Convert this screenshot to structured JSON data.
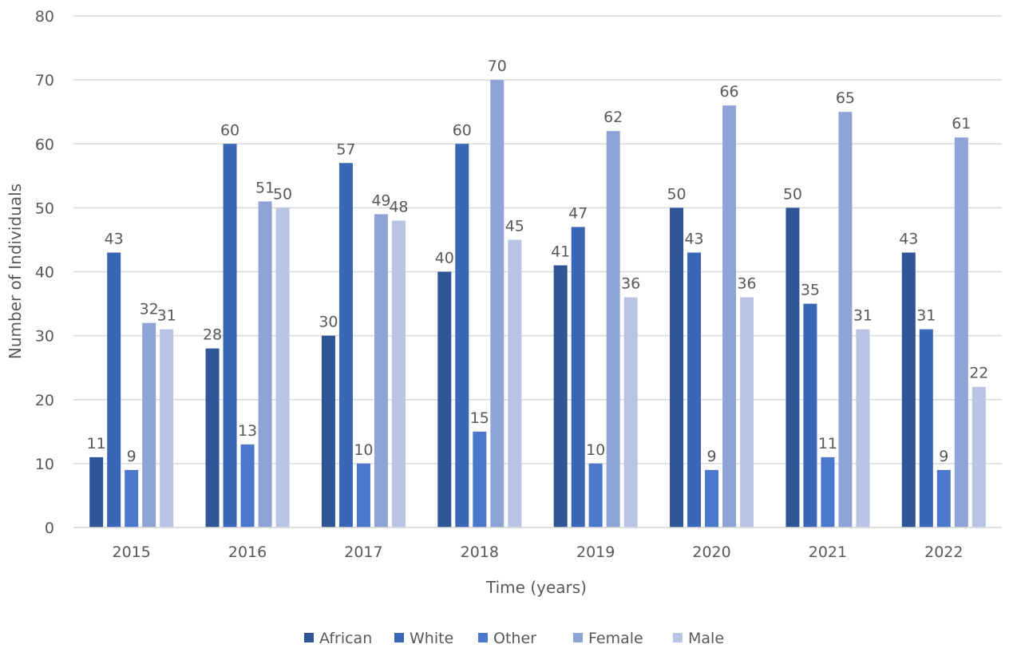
{
  "chart_data": {
    "type": "bar",
    "title": "",
    "xlabel": "Time (years)",
    "ylabel": "Number of Individuals",
    "categories": [
      "2015",
      "2016",
      "2017",
      "2018",
      "2019",
      "2020",
      "2021",
      "2022"
    ],
    "ylim": [
      0,
      80
    ],
    "yticks": [
      0,
      10,
      20,
      30,
      40,
      50,
      60,
      70,
      80
    ],
    "grid": true,
    "legend_position": "bottom",
    "series": [
      {
        "name": "African",
        "color": "#2f5597",
        "values": [
          11,
          28,
          30,
          40,
          41,
          50,
          50,
          43
        ]
      },
      {
        "name": "White",
        "color": "#3a66b6",
        "values": [
          43,
          60,
          57,
          60,
          47,
          43,
          35,
          31
        ]
      },
      {
        "name": "Other",
        "color": "#4b78cc",
        "values": [
          9,
          13,
          10,
          15,
          10,
          9,
          11,
          9
        ]
      },
      {
        "name": "Female",
        "color": "#8ea4d6",
        "values": [
          32,
          51,
          49,
          70,
          62,
          66,
          65,
          61
        ]
      },
      {
        "name": "Male",
        "color": "#b8c4e4",
        "values": [
          31,
          50,
          48,
          45,
          36,
          36,
          31,
          22
        ]
      }
    ],
    "data_labels": true
  }
}
